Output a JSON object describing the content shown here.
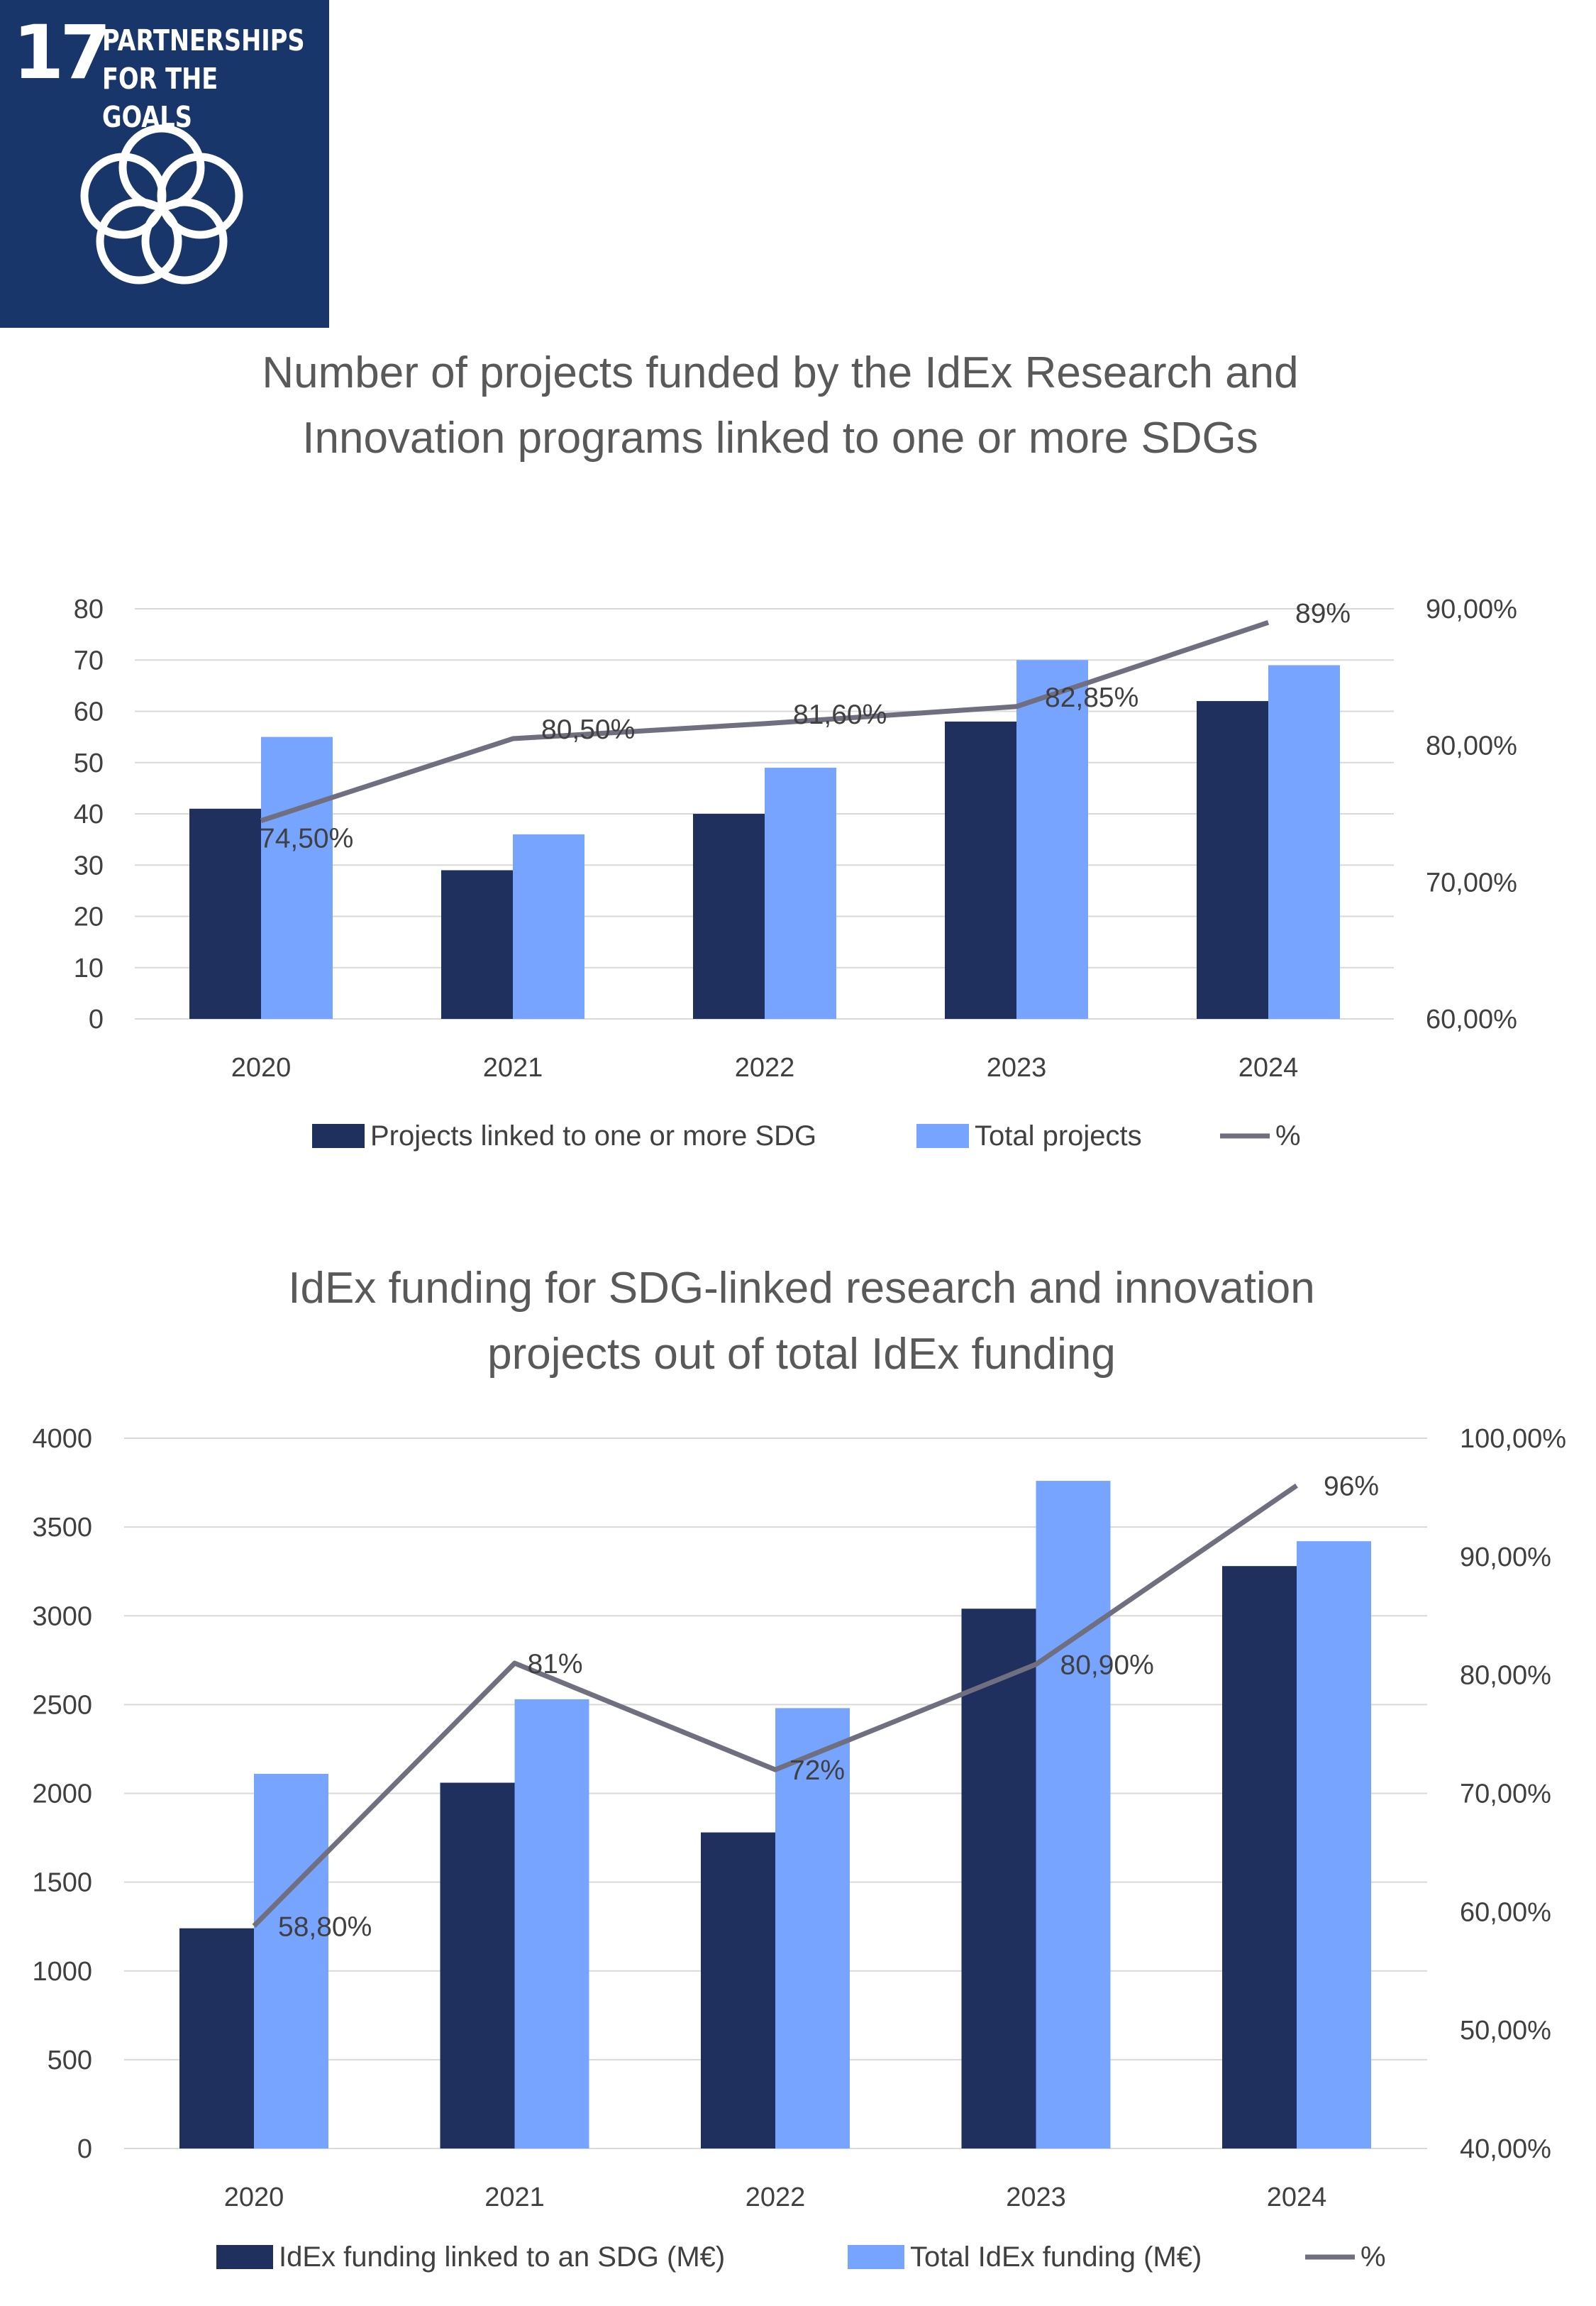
{
  "badge": {
    "number": "17",
    "line1": "PARTNERSHIPS",
    "line2": "FOR THE GOALS",
    "icon": "five-interlocking-rings-icon",
    "color": "#19366a"
  },
  "colors": {
    "dark": "#1f2f5e",
    "light": "#76a4ff",
    "line": "#6f6f80",
    "grid": "#d9d9d9",
    "text": "#404040"
  },
  "chart_data": [
    {
      "type": "bar",
      "title": [
        "Number of projects funded by the IdEx Research and",
        "Innovation programs linked to one or more SDGs"
      ],
      "categories": [
        "2020",
        "2021",
        "2022",
        "2023",
        "2024"
      ],
      "series": [
        {
          "name": "Projects linked to one or more SDG",
          "values": [
            41,
            29,
            40,
            58,
            62
          ]
        },
        {
          "name": "Total projects",
          "values": [
            55,
            36,
            49,
            70,
            69
          ]
        }
      ],
      "line": {
        "name": "%",
        "values": [
          74.5,
          80.5,
          81.6,
          82.85,
          89
        ],
        "labels": [
          "74,50%",
          "80,50%",
          "81,60%",
          "82,85%",
          "89%"
        ]
      },
      "ylim": [
        0,
        80
      ],
      "yticks": [
        0,
        10,
        20,
        30,
        40,
        50,
        60,
        70,
        80
      ],
      "y2lim": [
        60,
        90
      ],
      "y2ticks": [
        60,
        70,
        80,
        90
      ],
      "y2ticklabels": [
        "60,00%",
        "70,00%",
        "80,00%",
        "90,00%"
      ],
      "legend": "bottom"
    },
    {
      "type": "bar",
      "title": [
        "IdEx funding for SDG-linked research and innovation",
        "projects out of total IdEx funding"
      ],
      "categories": [
        "2020",
        "2021",
        "2022",
        "2023",
        "2024"
      ],
      "series": [
        {
          "name": "IdEx funding linked to an SDG (M€)",
          "values": [
            1240,
            2060,
            1780,
            3040,
            3280
          ]
        },
        {
          "name": "Total IdEx funding (M€)",
          "values": [
            2110,
            2530,
            2480,
            3760,
            3420
          ]
        }
      ],
      "line": {
        "name": "%",
        "values": [
          58.8,
          81,
          72,
          80.9,
          96
        ],
        "labels": [
          "58,80%",
          "81%",
          "72%",
          "80,90%",
          "96%"
        ]
      },
      "ylim": [
        0,
        4000
      ],
      "yticks": [
        0,
        500,
        1000,
        1500,
        2000,
        2500,
        3000,
        3500,
        4000
      ],
      "y2lim": [
        40,
        100
      ],
      "y2ticks": [
        40,
        50,
        60,
        70,
        80,
        90,
        100
      ],
      "y2ticklabels": [
        "40,00%",
        "50,00%",
        "60,00%",
        "70,00%",
        "80,00%",
        "90,00%",
        "100,00%"
      ],
      "legend": "bottom"
    }
  ]
}
